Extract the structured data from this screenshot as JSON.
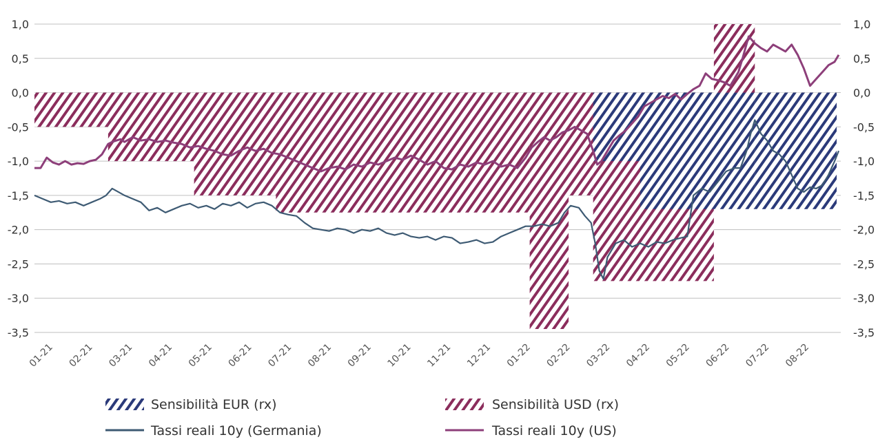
{
  "chart_data": {
    "type": "line",
    "title": "",
    "xlabel": "",
    "ylabel": "",
    "ylim": [
      -3.5,
      1.0
    ],
    "y_ticks": [
      1.0,
      0.5,
      0.0,
      -0.5,
      -1.0,
      -1.5,
      -2.0,
      -2.5,
      -3.0,
      -3.5
    ],
    "y_tick_labels": [
      "1,0",
      "0,5",
      "0,0",
      "-0,5",
      "-1,0",
      "-1,5",
      "-2,0",
      "-2,5",
      "-3,0",
      "-3,5"
    ],
    "y_tick_labels_right": [
      "1,0",
      "0,5",
      "0,0",
      "-0,5",
      "-1,0",
      "-1,5",
      "-2,0",
      "-2,5",
      "-3,0",
      "-3,5"
    ],
    "x_range": [
      0,
      19.7
    ],
    "x_tick_labels": [
      "01-21",
      "02-21",
      "03-21",
      "04-21",
      "05-21",
      "06-21",
      "07-21",
      "08-21",
      "09-21",
      "10-21",
      "11-21",
      "12-21",
      "01-22",
      "02-22",
      "03-22",
      "04-22",
      "05-22",
      "06-22",
      "07-22",
      "08-22"
    ],
    "grid": true,
    "legend_position": "bottom",
    "colors": {
      "eur": "#2b3a7a",
      "usd": "#8b2d5c",
      "de_line": "#3d5a73",
      "us_line": "#8d3f7a",
      "grid": "#bfbfbf"
    },
    "legend": {
      "eur": "Sensibilità EUR (rx)",
      "usd": "Sensibilità USD (rx)",
      "de": "Tassi reali 10y (Germania)",
      "us": "Tassi reali 10y (US)"
    },
    "bars": [
      {
        "series": "usd",
        "x0": 0.0,
        "x1": 1.8,
        "value": -0.5
      },
      {
        "series": "usd",
        "x0": 1.8,
        "x1": 3.9,
        "value": -1.0
      },
      {
        "series": "usd",
        "x0": 3.9,
        "x1": 5.9,
        "value": -1.5
      },
      {
        "series": "usd",
        "x0": 5.9,
        "x1": 12.1,
        "value": -1.75
      },
      {
        "series": "usd",
        "x0": 12.1,
        "x1": 13.05,
        "value": -3.45
      },
      {
        "series": "usd",
        "x0": 13.05,
        "x1": 13.65,
        "value": -1.5
      },
      {
        "series": "usd",
        "x0": 13.65,
        "x1": 16.6,
        "value": -2.75
      },
      {
        "series": "eur",
        "x0": 13.65,
        "x1": 14.8,
        "value": -1.0
      },
      {
        "series": "eur",
        "x0": 14.8,
        "x1": 16.6,
        "value": -1.7
      },
      {
        "series": "eur",
        "x0": 16.6,
        "x1": 17.6,
        "value": -1.7
      },
      {
        "series": "usd",
        "x0": 16.6,
        "x1": 17.6,
        "value": 1.0
      },
      {
        "series": "eur",
        "x0": 17.6,
        "x1": 19.6,
        "value": -1.7
      }
    ],
    "series": [
      {
        "key": "us",
        "name": "Tassi reali 10y (US)",
        "x": [
          0.0,
          0.15,
          0.3,
          0.45,
          0.6,
          0.75,
          0.9,
          1.05,
          1.2,
          1.35,
          1.5,
          1.65,
          1.8,
          1.9,
          2.0,
          2.1,
          2.2,
          2.4,
          2.6,
          2.8,
          3.0,
          3.2,
          3.4,
          3.6,
          3.8,
          4.0,
          4.2,
          4.4,
          4.6,
          4.8,
          5.0,
          5.2,
          5.4,
          5.6,
          5.8,
          6.0,
          6.2,
          6.4,
          6.6,
          6.8,
          7.0,
          7.2,
          7.4,
          7.6,
          7.8,
          8.0,
          8.2,
          8.4,
          8.6,
          8.8,
          9.0,
          9.2,
          9.4,
          9.6,
          9.8,
          10.0,
          10.2,
          10.4,
          10.6,
          10.8,
          11.0,
          11.2,
          11.4,
          11.6,
          11.8,
          12.0,
          12.15,
          12.3,
          12.45,
          12.6,
          12.75,
          12.9,
          13.05,
          13.2,
          13.35,
          13.5,
          13.65,
          13.75,
          13.85,
          13.95,
          14.05,
          14.15,
          14.3,
          14.45,
          14.6,
          14.75,
          14.9,
          15.05,
          15.2,
          15.35,
          15.5,
          15.65,
          15.8,
          15.95,
          16.1,
          16.25,
          16.4,
          16.55,
          16.7,
          16.85,
          17.0,
          17.1,
          17.2,
          17.3,
          17.45,
          17.6,
          17.75,
          17.9,
          18.05,
          18.2,
          18.35,
          18.5,
          18.65,
          18.8,
          18.95,
          19.1,
          19.25,
          19.4,
          19.55,
          19.65
        ],
        "values": [
          -1.1,
          -1.1,
          -0.95,
          -1.02,
          -1.05,
          -1.0,
          -1.05,
          -1.03,
          -1.04,
          -1.0,
          -0.98,
          -0.9,
          -0.75,
          -0.72,
          -0.7,
          -0.68,
          -0.72,
          -0.65,
          -0.7,
          -0.68,
          -0.72,
          -0.7,
          -0.73,
          -0.75,
          -0.8,
          -0.78,
          -0.82,
          -0.85,
          -0.9,
          -0.92,
          -0.85,
          -0.8,
          -0.85,
          -0.82,
          -0.88,
          -0.9,
          -0.95,
          -1.0,
          -1.05,
          -1.1,
          -1.15,
          -1.1,
          -1.08,
          -1.12,
          -1.05,
          -1.08,
          -1.02,
          -1.05,
          -1.0,
          -0.95,
          -0.98,
          -0.92,
          -0.98,
          -1.05,
          -1.0,
          -1.1,
          -1.12,
          -1.05,
          -1.08,
          -1.02,
          -1.05,
          -1.0,
          -1.08,
          -1.05,
          -1.1,
          -0.95,
          -0.8,
          -0.72,
          -0.65,
          -0.7,
          -0.65,
          -0.58,
          -0.55,
          -0.5,
          -0.55,
          -0.6,
          -0.85,
          -1.05,
          -1.0,
          -0.9,
          -0.8,
          -0.7,
          -0.62,
          -0.55,
          -0.45,
          -0.35,
          -0.2,
          -0.15,
          -0.1,
          -0.05,
          -0.08,
          -0.02,
          -0.1,
          -0.02,
          0.05,
          0.1,
          0.28,
          0.2,
          0.18,
          0.15,
          0.1,
          0.2,
          0.3,
          0.5,
          0.82,
          0.72,
          0.65,
          0.6,
          0.7,
          0.65,
          0.6,
          0.7,
          0.55,
          0.35,
          0.1,
          0.2,
          0.3,
          0.4,
          0.45,
          0.55
        ]
      },
      {
        "key": "de",
        "name": "Tassi reali 10y (Germania)",
        "x": [
          0.0,
          0.2,
          0.4,
          0.6,
          0.8,
          1.0,
          1.2,
          1.4,
          1.6,
          1.75,
          1.9,
          2.05,
          2.2,
          2.4,
          2.6,
          2.8,
          3.0,
          3.2,
          3.4,
          3.6,
          3.8,
          4.0,
          4.2,
          4.4,
          4.6,
          4.8,
          5.0,
          5.2,
          5.4,
          5.6,
          5.8,
          6.0,
          6.2,
          6.4,
          6.6,
          6.8,
          7.0,
          7.2,
          7.4,
          7.6,
          7.8,
          8.0,
          8.2,
          8.4,
          8.6,
          8.8,
          9.0,
          9.2,
          9.4,
          9.6,
          9.8,
          10.0,
          10.2,
          10.4,
          10.6,
          10.8,
          11.0,
          11.2,
          11.4,
          11.6,
          11.8,
          12.0,
          12.2,
          12.4,
          12.6,
          12.8,
          12.95,
          13.1,
          13.3,
          13.45,
          13.6,
          13.7,
          13.8,
          13.9,
          14.0,
          14.2,
          14.4,
          14.6,
          14.8,
          15.0,
          15.2,
          15.4,
          15.6,
          15.8,
          15.95,
          16.1,
          16.3,
          16.5,
          16.7,
          16.9,
          17.1,
          17.25,
          17.4,
          17.5,
          17.6,
          17.75,
          17.9,
          18.05,
          18.2,
          18.35,
          18.5,
          18.65,
          18.8,
          18.95,
          19.1,
          19.25,
          19.4,
          19.55,
          19.65
        ],
        "values": [
          -1.5,
          -1.55,
          -1.6,
          -1.58,
          -1.62,
          -1.6,
          -1.65,
          -1.6,
          -1.55,
          -1.5,
          -1.4,
          -1.45,
          -1.5,
          -1.55,
          -1.6,
          -1.72,
          -1.68,
          -1.75,
          -1.7,
          -1.65,
          -1.62,
          -1.68,
          -1.65,
          -1.7,
          -1.62,
          -1.65,
          -1.6,
          -1.68,
          -1.62,
          -1.6,
          -1.65,
          -1.75,
          -1.78,
          -1.8,
          -1.9,
          -1.98,
          -2.0,
          -2.02,
          -1.98,
          -2.0,
          -2.05,
          -2.0,
          -2.02,
          -1.98,
          -2.05,
          -2.08,
          -2.05,
          -2.1,
          -2.12,
          -2.1,
          -2.15,
          -2.1,
          -2.12,
          -2.2,
          -2.18,
          -2.15,
          -2.2,
          -2.18,
          -2.1,
          -2.05,
          -2.0,
          -1.95,
          -1.95,
          -1.92,
          -1.95,
          -1.9,
          -1.75,
          -1.65,
          -1.68,
          -1.8,
          -1.9,
          -2.2,
          -2.6,
          -2.72,
          -2.4,
          -2.2,
          -2.15,
          -2.25,
          -2.2,
          -2.25,
          -2.18,
          -2.2,
          -2.15,
          -2.12,
          -2.1,
          -1.5,
          -1.4,
          -1.45,
          -1.3,
          -1.15,
          -1.1,
          -1.1,
          -0.85,
          -0.6,
          -0.4,
          -0.6,
          -0.7,
          -0.85,
          -0.9,
          -1.0,
          -1.2,
          -1.4,
          -1.45,
          -1.38,
          -1.4,
          -1.35,
          -1.2,
          -1.0,
          -0.85
        ]
      }
    ]
  }
}
